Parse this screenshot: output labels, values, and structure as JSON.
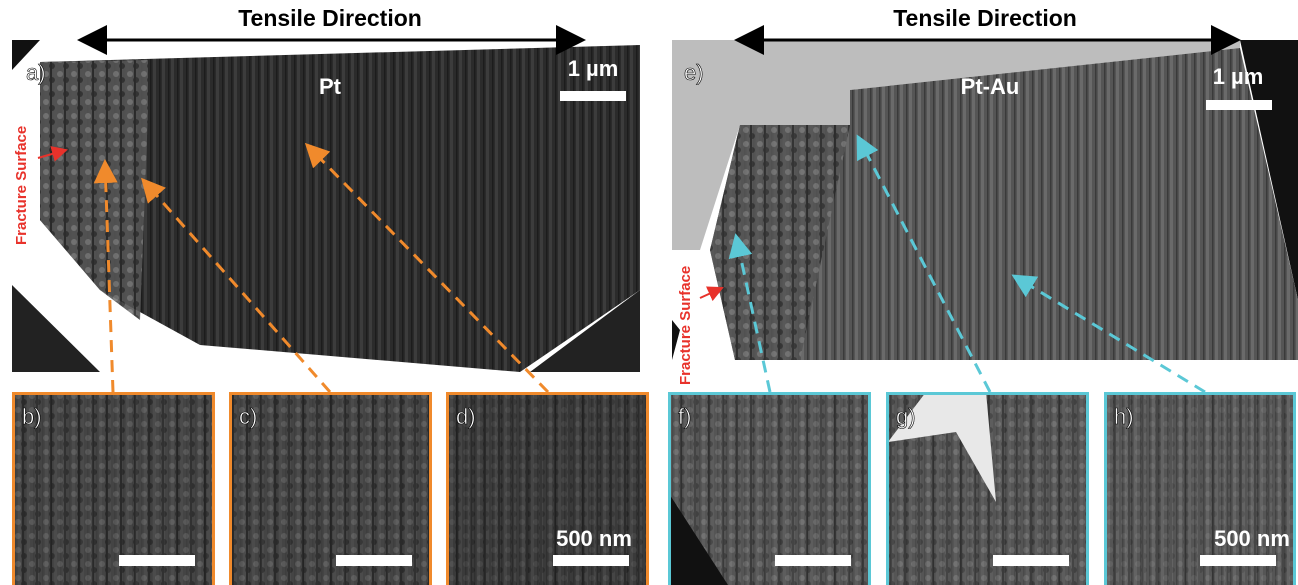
{
  "panels": [
    {
      "direction": "Tensile Direction",
      "label": "a)",
      "material": "Pt",
      "scale_bar": "1 µm",
      "fracture_label": "Fracture Surface",
      "insets": [
        {
          "label": "b)"
        },
        {
          "label": "c)"
        },
        {
          "label": "d)"
        }
      ],
      "inset_scale_bar": "500 nm"
    },
    {
      "direction": "Tensile Direction",
      "label": "e)",
      "material": "Pt-Au",
      "scale_bar": "1 µm",
      "fracture_label": "Fracture Surface",
      "insets": [
        {
          "label": "f)"
        },
        {
          "label": "g)"
        },
        {
          "label": "h)"
        }
      ],
      "inset_scale_bar": "500 nm"
    }
  ]
}
